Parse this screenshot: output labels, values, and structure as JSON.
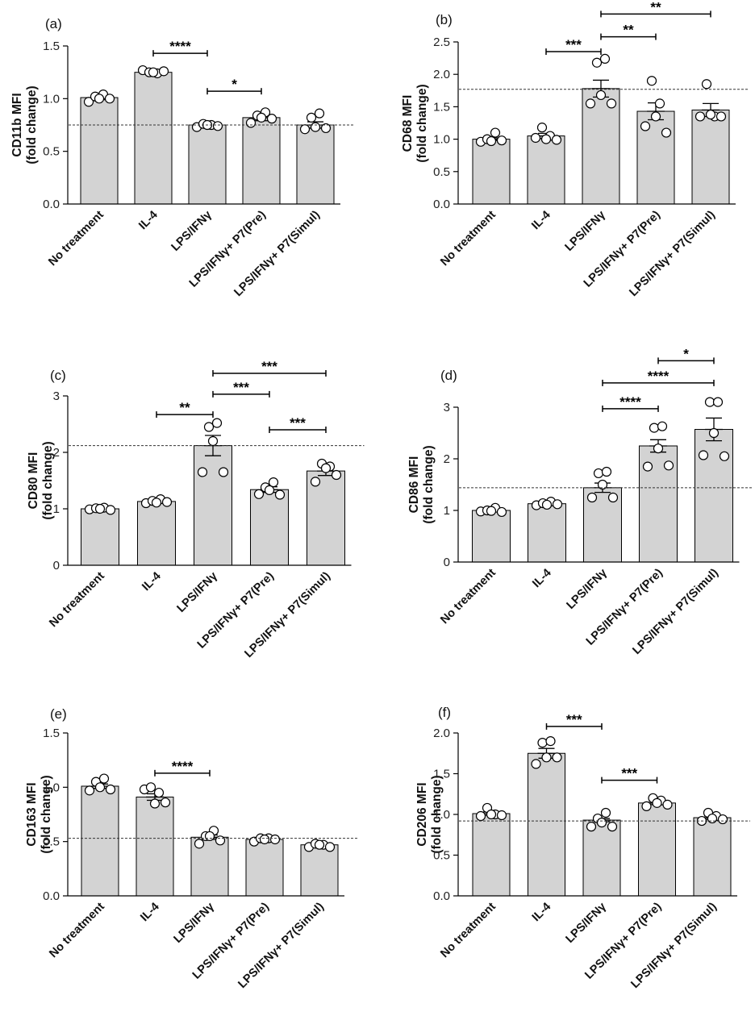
{
  "chart_data": [
    {
      "type": "bar",
      "panel": "(a)",
      "ylabel": [
        "CD11b MFI",
        "(fold change)"
      ],
      "ylim": [
        0,
        1.5
      ],
      "yticks": [
        0.0,
        0.5,
        1.0,
        1.5
      ],
      "ytick_labels": [
        "0.0",
        "0.5",
        "1.0",
        "1.5"
      ],
      "categories": [
        "No treatment",
        "IL-4",
        "LPS/IFNγ",
        "LPS/IFNγ+ P7(Pre)",
        "LPS/IFNγ+ P7(Simul)"
      ],
      "values": [
        1.01,
        1.25,
        0.75,
        0.82,
        0.75
      ],
      "sem": [
        0.02,
        0.01,
        0.01,
        0.03,
        0.03
      ],
      "points": [
        [
          0.97,
          1.02,
          1.04,
          1.0,
          1.0
        ],
        [
          1.27,
          1.25,
          1.24,
          1.26,
          1.25
        ],
        [
          0.73,
          0.76,
          0.75,
          0.74,
          0.75
        ],
        [
          0.77,
          0.84,
          0.87,
          0.81,
          0.82
        ],
        [
          0.71,
          0.82,
          0.86,
          0.72,
          0.73
        ]
      ],
      "ref_line": 0.75,
      "significance": [
        {
          "from": 1,
          "to": 2,
          "y": 1.43,
          "label": "****"
        },
        {
          "from": 2,
          "to": 3,
          "y": 1.07,
          "label": "*"
        }
      ]
    },
    {
      "type": "bar",
      "panel": "(b)",
      "ylabel": [
        "CD68 MFI",
        "(fold change)"
      ],
      "ylim": [
        0,
        2.5
      ],
      "yticks": [
        0.0,
        0.5,
        1.0,
        1.5,
        2.0,
        2.5
      ],
      "ytick_labels": [
        "0.0",
        "0.5",
        "1.0",
        "1.5",
        "2.0",
        "2.5"
      ],
      "categories": [
        "No treatment",
        "IL-4",
        "LPS/IFNγ",
        "LPS/IFNγ+ P7(Pre)",
        "LPS/IFNγ+ P7(Simul)"
      ],
      "values": [
        1.0,
        1.05,
        1.78,
        1.43,
        1.45
      ],
      "sem": [
        0.02,
        0.04,
        0.13,
        0.13,
        0.1
      ],
      "points": [
        [
          0.96,
          1.0,
          1.1,
          0.98,
          0.97
        ],
        [
          1.02,
          1.18,
          1.05,
          0.99,
          1.0
        ],
        [
          1.55,
          2.18,
          2.24,
          1.55,
          1.68
        ],
        [
          1.2,
          1.9,
          1.55,
          1.1,
          1.35
        ],
        [
          1.35,
          1.85,
          1.35,
          1.35,
          1.38
        ]
      ],
      "ref_line": 1.77,
      "significance": [
        {
          "from": 1,
          "to": 2,
          "y": 2.35,
          "label": "***"
        },
        {
          "from": 2,
          "to": 3,
          "y": 2.58,
          "label": "**"
        },
        {
          "from": 2,
          "to": 4,
          "y": 2.93,
          "label": "**"
        }
      ]
    },
    {
      "type": "bar",
      "panel": "(c)",
      "ylabel": [
        "CD80 MFI",
        "(fold change)"
      ],
      "ylim": [
        0,
        3
      ],
      "yticks": [
        0,
        1,
        2,
        3
      ],
      "ytick_labels": [
        "0",
        "1",
        "2",
        "3"
      ],
      "categories": [
        "No treatment",
        "IL-4",
        "LPS/IFNγ",
        "LPS/IFNγ+ P7(Pre)",
        "LPS/IFNγ+ P7(Simul)"
      ],
      "values": [
        1.0,
        1.13,
        2.12,
        1.34,
        1.67
      ],
      "sem": [
        0.01,
        0.02,
        0.18,
        0.05,
        0.08
      ],
      "points": [
        [
          0.99,
          1.01,
          1.02,
          0.98,
          1.0
        ],
        [
          1.1,
          1.14,
          1.17,
          1.12,
          1.11
        ],
        [
          1.65,
          2.45,
          2.52,
          1.65,
          2.2
        ],
        [
          1.26,
          1.38,
          1.47,
          1.25,
          1.33
        ],
        [
          1.48,
          1.8,
          1.75,
          1.6,
          1.72
        ]
      ],
      "ref_line": 2.12,
      "significance": [
        {
          "from": 1,
          "to": 2,
          "y": 2.67,
          "label": "**"
        },
        {
          "from": 2,
          "to": 3,
          "y": 3.03,
          "label": "***"
        },
        {
          "from": 2,
          "to": 4,
          "y": 3.4,
          "label": "***"
        },
        {
          "from": 3,
          "to": 4,
          "y": 2.4,
          "label": "***"
        }
      ]
    },
    {
      "type": "bar",
      "panel": "(d)",
      "ylabel": [
        "CD86 MFI",
        "(fold change)"
      ],
      "ylim": [
        0,
        3.2
      ],
      "yticks": [
        0,
        1,
        2,
        3
      ],
      "ytick_labels": [
        "0",
        "1",
        "2",
        "3"
      ],
      "categories": [
        "No treatment",
        "IL-4",
        "LPS/IFNγ",
        "LPS/IFNγ+ P7(Pre)",
        "LPS/IFNγ+ P7(Simul)"
      ],
      "values": [
        1.0,
        1.13,
        1.44,
        2.25,
        2.57
      ],
      "sem": [
        0.02,
        0.02,
        0.09,
        0.12,
        0.22
      ],
      "points": [
        [
          0.98,
          1.0,
          1.05,
          0.97,
          0.99
        ],
        [
          1.1,
          1.14,
          1.17,
          1.12,
          1.11
        ],
        [
          1.25,
          1.72,
          1.75,
          1.25,
          1.5
        ],
        [
          1.85,
          2.6,
          2.63,
          1.87,
          2.2
        ],
        [
          2.07,
          3.1,
          3.1,
          2.05,
          2.5
        ]
      ],
      "ref_line": 1.44,
      "significance": [
        {
          "from": 2,
          "to": 3,
          "y": 2.97,
          "label": "****"
        },
        {
          "from": 2,
          "to": 4,
          "y": 3.47,
          "label": "****"
        },
        {
          "from": 3,
          "to": 4,
          "y": 3.9,
          "label": "*"
        }
      ]
    },
    {
      "type": "bar",
      "panel": "(e)",
      "ylabel": [
        "CD163 MFI",
        "(fold change)"
      ],
      "ylim": [
        0,
        1.5
      ],
      "yticks": [
        0.0,
        0.5,
        1.0,
        1.5
      ],
      "ytick_labels": [
        "0.0",
        "0.5",
        "1.0",
        "1.5"
      ],
      "categories": [
        "No treatment",
        "IL-4",
        "LPS/IFNγ",
        "LPS/IFNγ+ P7(Pre)",
        "LPS/IFNγ+ P7(Simul)"
      ],
      "values": [
        1.01,
        0.91,
        0.54,
        0.52,
        0.47
      ],
      "sem": [
        0.02,
        0.03,
        0.02,
        0.01,
        0.01
      ],
      "points": [
        [
          0.97,
          1.05,
          1.08,
          0.98,
          1.0
        ],
        [
          0.98,
          1.0,
          0.95,
          0.86,
          0.85
        ],
        [
          0.48,
          0.55,
          0.6,
          0.51,
          0.55
        ],
        [
          0.5,
          0.53,
          0.53,
          0.52,
          0.52
        ],
        [
          0.45,
          0.48,
          0.47,
          0.45,
          0.47
        ]
      ],
      "ref_line": 0.53,
      "significance": [
        {
          "from": 1,
          "to": 2,
          "y": 1.13,
          "label": "****"
        }
      ]
    },
    {
      "type": "bar",
      "panel": "(f)",
      "ylabel": [
        "CD206 MFI",
        "(fold change)"
      ],
      "ylim": [
        0,
        2.0
      ],
      "yticks": [
        0.0,
        0.5,
        1.0,
        1.5,
        2.0
      ],
      "ytick_labels": [
        "0.0",
        "0.5",
        "1.0",
        "1.5",
        "2.0"
      ],
      "categories": [
        "No treatment",
        "IL-4",
        "LPS/IFNγ",
        "LPS/IFNγ+ P7(Pre)",
        "LPS/IFNγ+ P7(Simul)"
      ],
      "values": [
        1.01,
        1.75,
        0.93,
        1.14,
        0.96
      ],
      "sem": [
        0.02,
        0.06,
        0.02,
        0.02,
        0.02
      ],
      "points": [
        [
          0.98,
          1.08,
          1.0,
          0.99,
          1.0
        ],
        [
          1.62,
          1.88,
          1.9,
          1.7,
          1.7
        ],
        [
          0.85,
          0.95,
          1.02,
          0.85,
          0.9
        ],
        [
          1.1,
          1.2,
          1.17,
          1.12,
          1.14
        ],
        [
          0.92,
          1.02,
          0.98,
          0.94,
          0.95
        ]
      ],
      "ref_line": 0.92,
      "significance": [
        {
          "from": 1,
          "to": 2,
          "y": 2.08,
          "label": "***"
        },
        {
          "from": 2,
          "to": 3,
          "y": 1.42,
          "label": "***"
        }
      ]
    }
  ]
}
